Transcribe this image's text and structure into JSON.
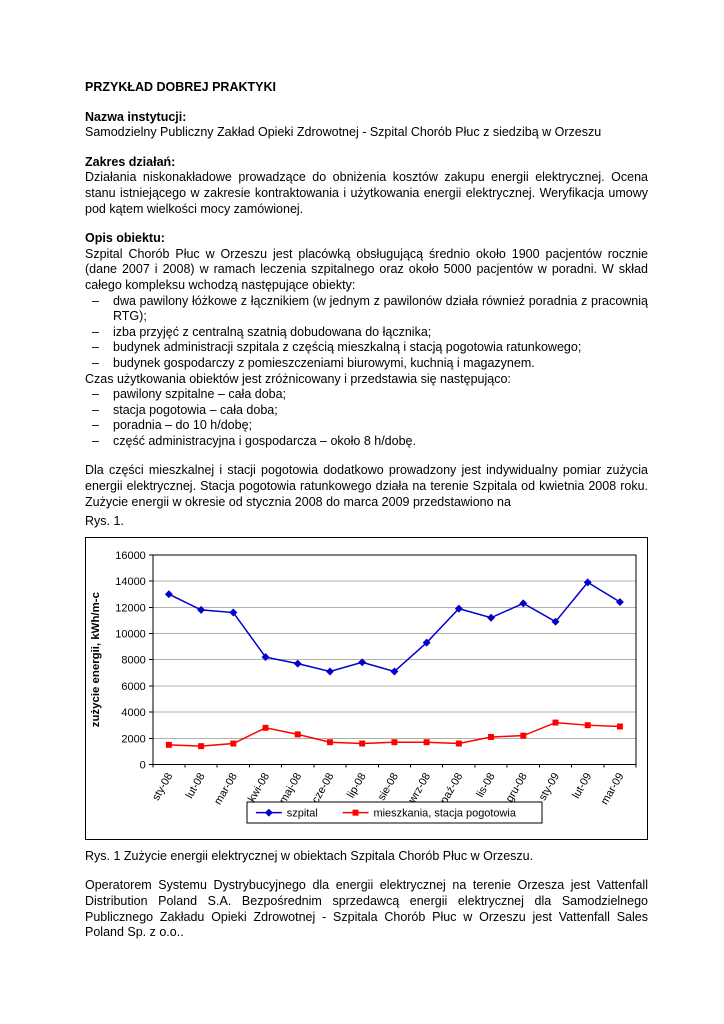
{
  "doc": {
    "title": "PRZYKŁAD DOBREJ PRAKTYKI",
    "institution": {
      "heading": "Nazwa instytucji:",
      "text": "Samodzielny Publiczny Zakład Opieki Zdrowotnej - Szpital Chorób Płuc z siedzibą w Orzeszu"
    },
    "scope": {
      "heading": "Zakres działań:",
      "text": "Działania niskonakładowe prowadzące do obniżenia kosztów zakupu energii elektrycznej. Ocena stanu istniejącego w zakresie kontraktowania i użytkowania energii elektrycznej. Weryfikacja umowy pod kątem wielkości mocy zamówionej."
    },
    "object": {
      "heading": "Opis obiektu:",
      "intro": "Szpital Chorób Płuc w Orzeszu jest placówką obsługującą średnio około 1900 pacjentów rocznie (dane 2007 i 2008) w ramach leczenia szpitalnego oraz około 5000 pacjentów w poradni. W skład całego kompleksu wchodzą następujące obiekty:",
      "buildings": [
        "dwa pawilony łóżkowe z łącznikiem (w jednym z pawilonów działa również poradnia z pracownią RTG);",
        "izba przyjęć z centralną szatnią dobudowana do łącznika;",
        "budynek administracji szpitala z częścią mieszkalną i stacją pogotowia ratunkowego;",
        "budynek gospodarczy z pomieszczeniami biurowymi, kuchnią i magazynem."
      ],
      "usage_intro": "Czas użytkowania obiektów jest zróżnicowany i przedstawia się następująco:",
      "usage": [
        "pawilony szpitalne – cała doba;",
        "stacja pogotowia – cała doba;",
        "poradnia – do 10 h/dobę;",
        "część administracyjna i gospodarcza – około 8 h/dobę."
      ]
    },
    "measurement": "Dla części mieszkalnej i stacji pogotowia dodatkowo prowadzony jest indywidualny pomiar zużycia energii elektrycznej. Stacja pogotowia ratunkowego działa na terenie Szpitala od kwietnia 2008 roku. Zużycie energii w okresie od stycznia 2008 do marca 2009 przedstawiono na",
    "figure_ref": "Rys. 1.",
    "figure_caption": "Rys. 1 Zużycie energii elektrycznej w obiektach Szpitala Chorób Płuc w Orzeszu.",
    "operator": "Operatorem Systemu Dystrybucyjnego dla energii elektrycznej na terenie Orzesza jest Vattenfall Distribution Poland S.A. Bezpośrednim sprzedawcą energii elektrycznej dla Samodzielnego Publicznego Zakładu Opieki Zdrowotnej - Szpitala Chorób Płuc w Orzeszu jest Vattenfall Sales Poland Sp. z o.o.."
  },
  "chart_data": {
    "type": "line",
    "title": "",
    "xlabel": "",
    "ylabel": "zużycie energii, kWh/m-c",
    "ylim": [
      0,
      16000
    ],
    "ytick_step": 2000,
    "grid": true,
    "legend_position": "bottom",
    "gridline_color": "#b0b0b0",
    "categories": [
      "sty-08",
      "lut-08",
      "mar-08",
      "kwi-08",
      "maj-08",
      "cze-08",
      "lip-08",
      "sie-08",
      "wrz-08",
      "paź-08",
      "lis-08",
      "gru-08",
      "sty-09",
      "lut-09",
      "mar-09"
    ],
    "series": [
      {
        "name": "szpital",
        "color": "#0000cc",
        "marker": "diamond",
        "values": [
          13000,
          11800,
          11600,
          8200,
          7700,
          7100,
          7800,
          7100,
          9300,
          11900,
          11200,
          12300,
          10900,
          13900,
          12400
        ]
      },
      {
        "name": "mieszkania, stacja pogotowia",
        "color": "#ff0000",
        "marker": "square",
        "values": [
          1500,
          1400,
          1600,
          2800,
          2300,
          1700,
          1600,
          1700,
          1700,
          1600,
          2100,
          2200,
          3200,
          3000,
          2900
        ]
      }
    ]
  }
}
